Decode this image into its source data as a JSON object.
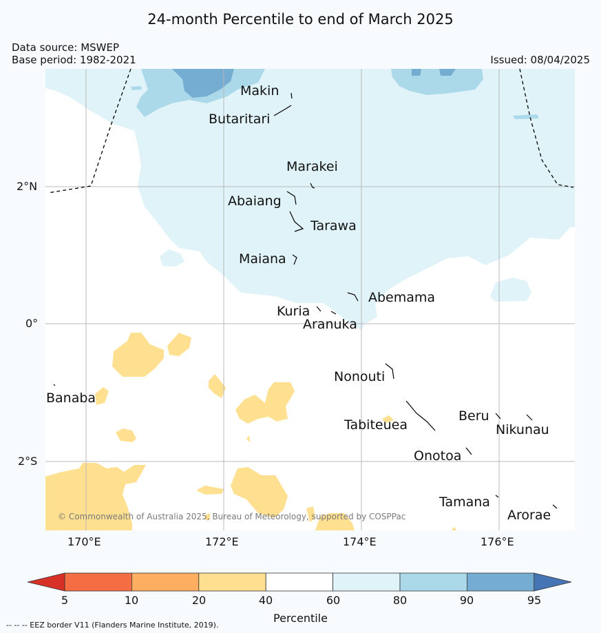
{
  "title": "24-month Percentile to end of March 2025",
  "data_source": "Data source: MSWEP",
  "base_period": "Base period: 1982-2021",
  "issued": "Issued: 08/04/2025",
  "places": {
    "makin": "Makin",
    "butaritari": "Butaritari",
    "marakei": "Marakei",
    "abaiang": "Abaiang",
    "tarawa": "Tarawa",
    "maiana": "Maiana",
    "abemama": "Abemama",
    "kuria": "Kuria",
    "aranuka": "Aranuka",
    "nonouti": "Nonouti",
    "banaba": "Banaba",
    "beru": "Beru",
    "tabiteuea": "Tabiteuea",
    "nikunau": "Nikunau",
    "onotoa": "Onotoa",
    "tamana": "Tamana",
    "arorae": "Arorae"
  },
  "axes": {
    "lat_ticks": [
      "2°N",
      "0°",
      "2°S"
    ],
    "lon_ticks": [
      "170°E",
      "172°E",
      "174°E",
      "176°E"
    ]
  },
  "copyright": "© Commonwealth of Australia 2025, Bureau of Meteorology, supported by COSPPac",
  "colorbar": {
    "label": "Percentile",
    "ticks": [
      "5",
      "10",
      "20",
      "40",
      "60",
      "80",
      "90",
      "95"
    ],
    "colors": {
      "below_5": "#d73027",
      "5_10": "#f46d43",
      "10_20": "#fdae61",
      "20_40": "#fee090",
      "40_60": "#ffffff",
      "60_80": "#e0f3f8",
      "80_90": "#abd9e9",
      "90_95": "#74add1",
      "above_95": "#4575b4"
    }
  },
  "eez_note": "--  --  -- EEZ border V11 (Flanders Marine Institute, 2019)."
}
